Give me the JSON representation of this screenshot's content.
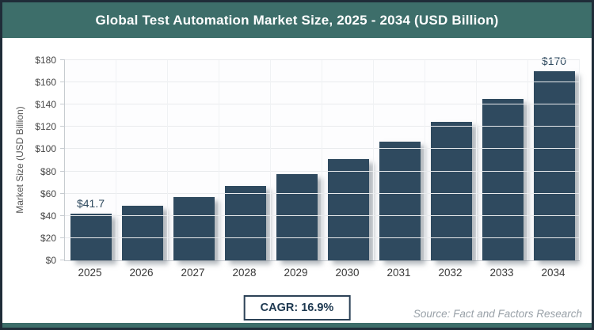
{
  "header": {
    "title": "Global Test Automation Market Size, 2025 - 2034 (USD Billion)"
  },
  "chart_data": {
    "type": "bar",
    "title": "Global Test Automation Market Size, 2025 - 2034 (USD Billion)",
    "categories": [
      "2025",
      "2026",
      "2027",
      "2028",
      "2029",
      "2030",
      "2031",
      "2032",
      "2033",
      "2034"
    ],
    "values": [
      41.7,
      48.8,
      57.0,
      66.6,
      77.9,
      91.1,
      106.5,
      124.5,
      145.5,
      170
    ],
    "data_labels": [
      {
        "category": "2025",
        "text": "$41.7"
      },
      {
        "category": "2034",
        "text": "$170"
      }
    ],
    "xlabel": "",
    "ylabel": "Market Size (USD Billion)",
    "ylim": [
      0,
      180
    ],
    "ytick_step": 20,
    "ytick_labels": [
      "$0",
      "$20",
      "$40",
      "$60",
      "$80",
      "$100",
      "$120",
      "$140",
      "$160",
      "$180"
    ],
    "grid": true,
    "legend": false,
    "bar_color": "#2f4a5f"
  },
  "footer": {
    "cagr_label": "CAGR: 16.9%",
    "source": "Source: Fact and Factors Research"
  },
  "colors": {
    "header_teal": "#3d6e6a",
    "frame_navy": "#1f2c38",
    "bar_navy": "#2f4a5f",
    "cagr_text_navy": "#1d3850",
    "source_gray": "#99a1a8"
  }
}
